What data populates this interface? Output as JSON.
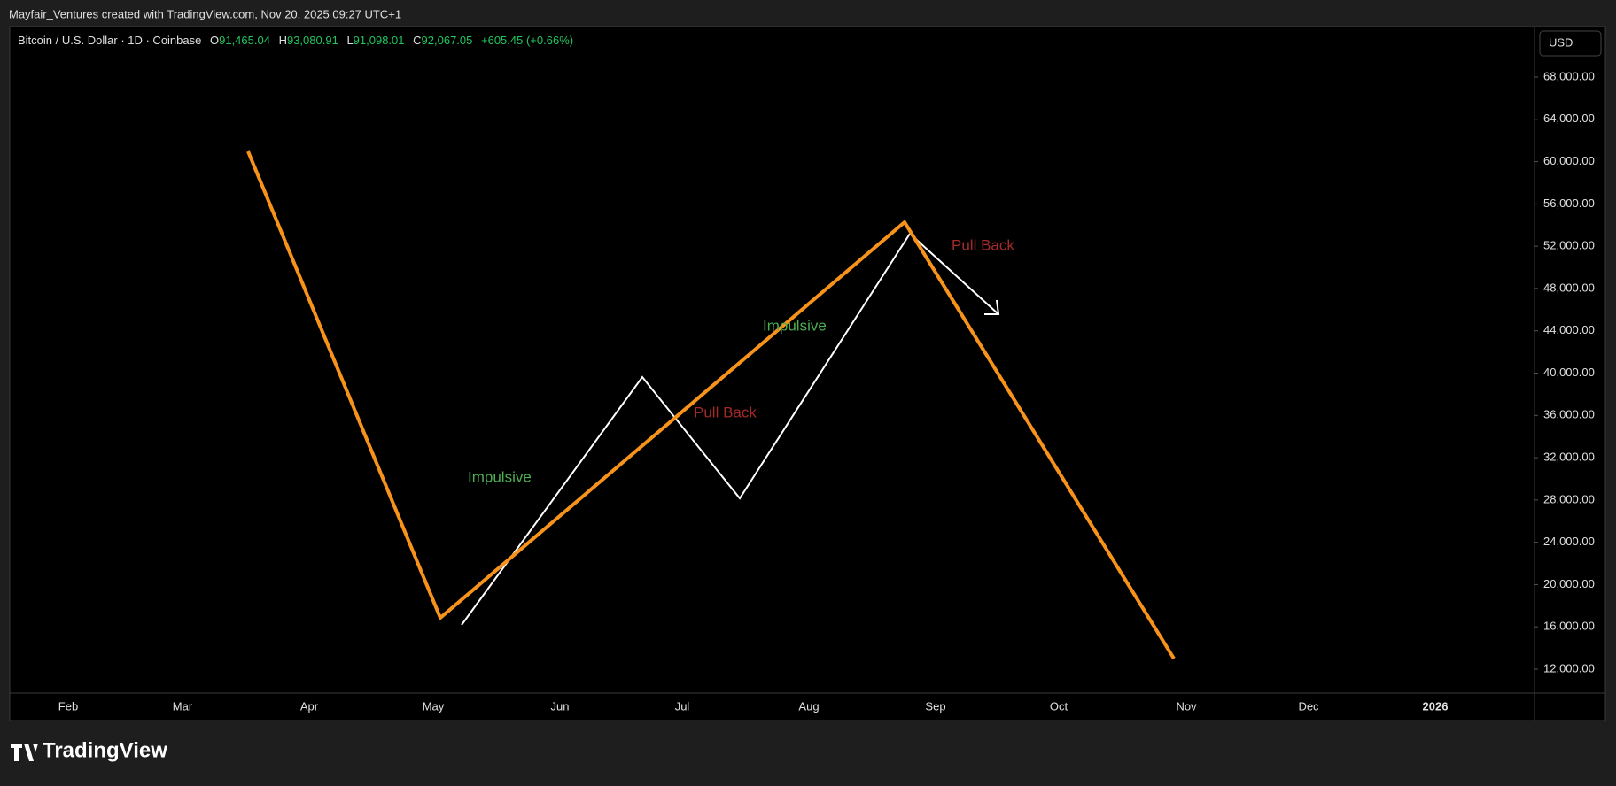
{
  "header": "Mayfair_Ventures created with TradingView.com, Nov 20, 2025 09:27 UTC+1",
  "legend": {
    "symbol": "Bitcoin / U.S. Dollar · 1D · Coinbase",
    "o_label": "O",
    "o": "91,465.04",
    "h_label": "H",
    "h": "93,080.91",
    "l_label": "L",
    "l": "91,098.01",
    "c_label": "C",
    "c": "92,067.05",
    "change": "+605.45 (+0.66%)"
  },
  "currency": "USD",
  "footer": "TradingView",
  "chart_data": {
    "type": "line",
    "categories": [
      "Feb",
      "Mar",
      "Apr",
      "May",
      "Jun",
      "Jul",
      "Aug",
      "Sep",
      "Oct",
      "Nov",
      "Dec",
      "2026"
    ],
    "ylim": [
      9740,
      72770
    ],
    "yticks": [
      {
        "value": 12000,
        "label": "12,000.00"
      },
      {
        "value": 16000,
        "label": "16,000.00"
      },
      {
        "value": 20000,
        "label": "20,000.00"
      },
      {
        "value": 24000,
        "label": "24,000.00"
      },
      {
        "value": 28000,
        "label": "28,000.00"
      },
      {
        "value": 32000,
        "label": "32,000.00"
      },
      {
        "value": 36000,
        "label": "36,000.00"
      },
      {
        "value": 40000,
        "label": "40,000.00"
      },
      {
        "value": 44000,
        "label": "44,000.00"
      },
      {
        "value": 48000,
        "label": "48,000.00"
      },
      {
        "value": 52000,
        "label": "52,000.00"
      },
      {
        "value": 56000,
        "label": "56,000.00"
      },
      {
        "value": 60000,
        "label": "60,000.00"
      },
      {
        "value": 64000,
        "label": "64,000.00"
      },
      {
        "value": 68000,
        "label": "68,000.00"
      }
    ],
    "annotations": [
      "Impulsive",
      "Pull Back",
      "Impulsive",
      "Pull Back"
    ]
  }
}
